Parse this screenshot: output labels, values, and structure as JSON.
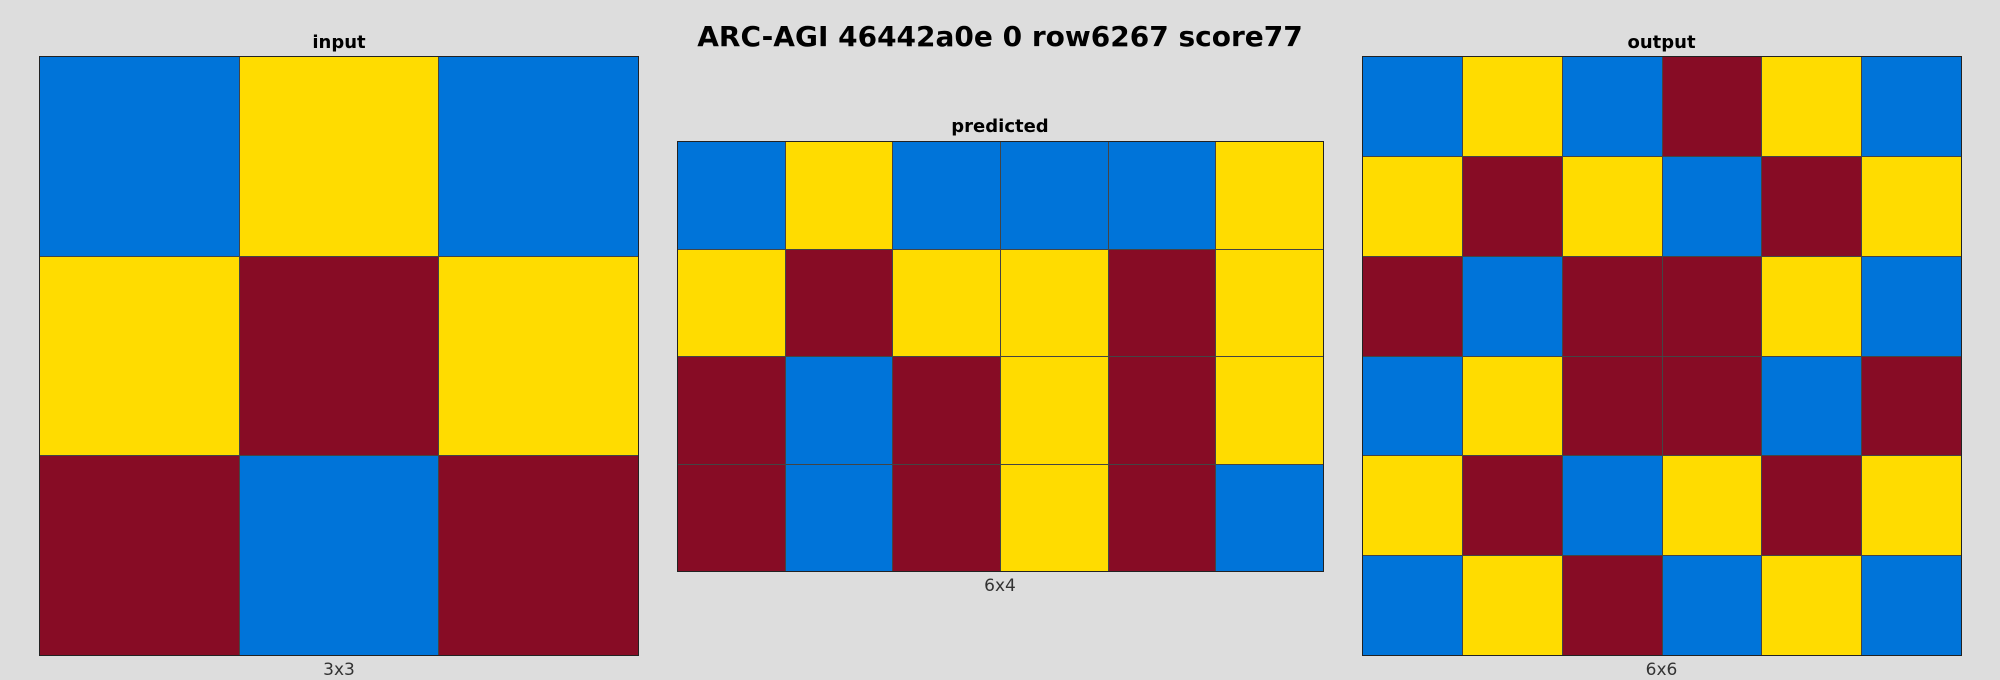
{
  "title": "ARC-AGI 46442a0e 0 row6267 score77",
  "palette": {
    "B": "#0074d9",
    "Y": "#ffdc00",
    "R": "#870c25"
  },
  "input": {
    "label": "input",
    "size": "3x3",
    "rows": [
      [
        "B",
        "Y",
        "B"
      ],
      [
        "Y",
        "R",
        "Y"
      ],
      [
        "R",
        "B",
        "R"
      ]
    ]
  },
  "predicted": {
    "label": "predicted",
    "size": "6x4",
    "rows": [
      [
        "B",
        "Y",
        "B",
        "B",
        "B",
        "Y"
      ],
      [
        "Y",
        "R",
        "Y",
        "Y",
        "R",
        "Y"
      ],
      [
        "R",
        "B",
        "R",
        "Y",
        "R",
        "Y"
      ],
      [
        "R",
        "B",
        "R",
        "Y",
        "R",
        "B"
      ]
    ]
  },
  "output": {
    "label": "output",
    "size": "6x6",
    "rows": [
      [
        "B",
        "Y",
        "B",
        "R",
        "Y",
        "B"
      ],
      [
        "Y",
        "R",
        "Y",
        "B",
        "R",
        "Y"
      ],
      [
        "R",
        "B",
        "R",
        "R",
        "Y",
        "B"
      ],
      [
        "B",
        "Y",
        "R",
        "R",
        "B",
        "R"
      ],
      [
        "Y",
        "R",
        "B",
        "Y",
        "R",
        "Y"
      ],
      [
        "B",
        "Y",
        "R",
        "B",
        "Y",
        "B"
      ]
    ]
  }
}
